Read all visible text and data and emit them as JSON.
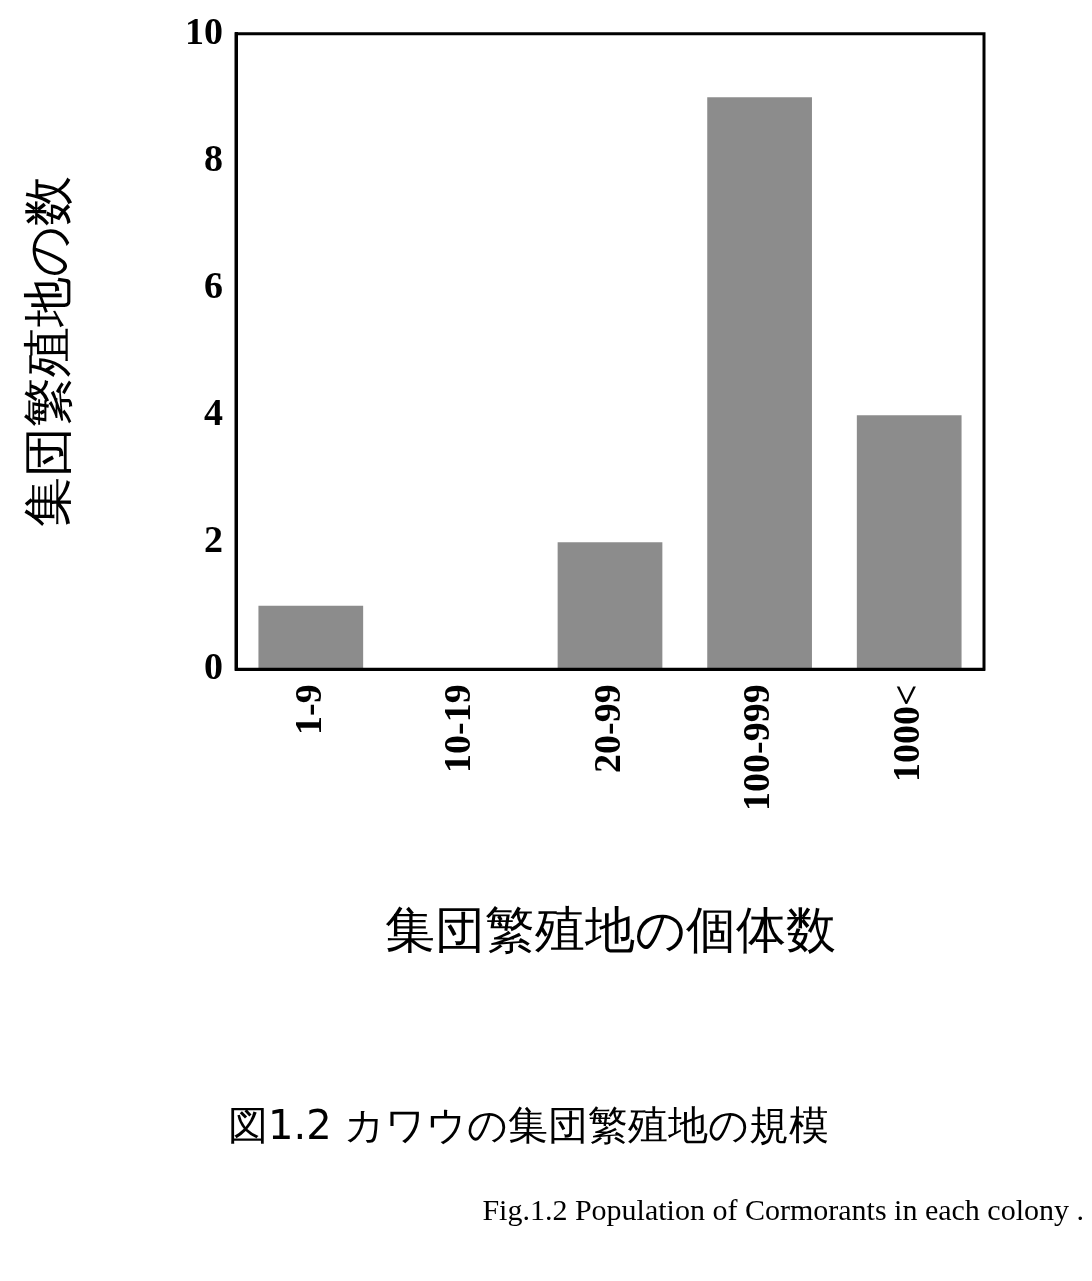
{
  "chart_data": {
    "type": "bar",
    "xlabel": "集団繁殖地の個体数",
    "ylabel": "集団繁殖地の数",
    "categories": [
      "1-9",
      "10-19",
      "20-99",
      "100-999",
      "1000<"
    ],
    "values": [
      1,
      0,
      2,
      9,
      4
    ],
    "color": "#8c8c8c",
    "ylim": [
      0,
      10
    ],
    "yticks": [
      0,
      2,
      4,
      6,
      8,
      10
    ],
    "grid": false,
    "legend": false,
    "annotations": [
      "図1.2 カワウの集団繁殖地の規模",
      "Fig.1.2 Population of Cormorants in each colony ."
    ]
  }
}
